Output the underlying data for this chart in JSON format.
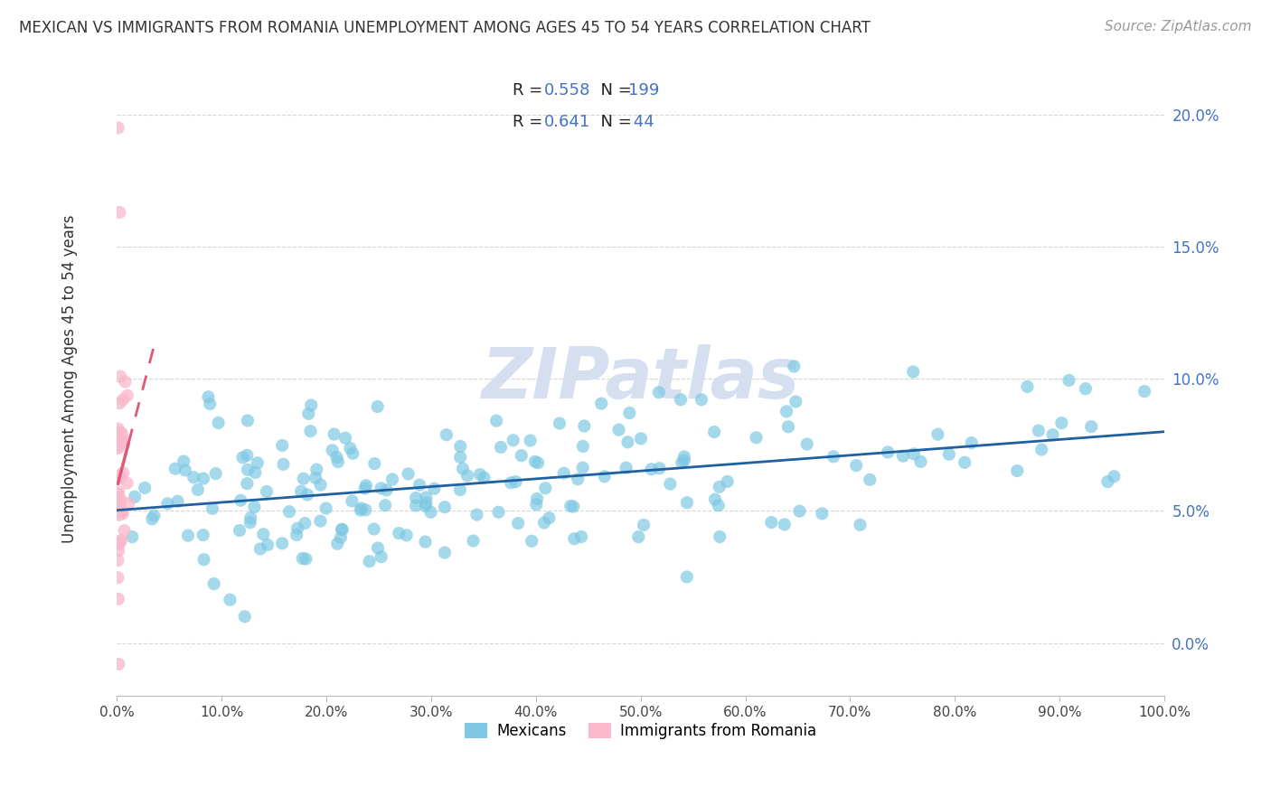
{
  "title": "MEXICAN VS IMMIGRANTS FROM ROMANIA UNEMPLOYMENT AMONG AGES 45 TO 54 YEARS CORRELATION CHART",
  "source": "Source: ZipAtlas.com",
  "ylabel": "Unemployment Among Ages 45 to 54 years",
  "blue_R": 0.558,
  "blue_N": 199,
  "pink_R": 0.641,
  "pink_N": 44,
  "blue_color": "#7ec8e3",
  "pink_color": "#f9b8cb",
  "blue_line_color": "#2060a0",
  "pink_line_color": "#e05878",
  "watermark_text": "ZIPatlas",
  "watermark_color": "#d5dff0",
  "xlim": [
    0.0,
    1.0
  ],
  "ylim": [
    -0.02,
    0.22
  ],
  "xtick_positions": [
    0.0,
    0.1,
    0.2,
    0.3,
    0.4,
    0.5,
    0.6,
    0.7,
    0.8,
    0.9,
    1.0
  ],
  "xtick_labels": [
    "0.0%",
    "10.0%",
    "20.0%",
    "30.0%",
    "40.0%",
    "50.0%",
    "60.0%",
    "70.0%",
    "80.0%",
    "90.0%",
    "100.0%"
  ],
  "ytick_positions": [
    0.0,
    0.05,
    0.1,
    0.15,
    0.2
  ],
  "ytick_labels": [
    "0.0%",
    "5.0%",
    "10.0%",
    "15.0%",
    "20.0%"
  ],
  "legend_blue_label": "Mexicans",
  "legend_pink_label": "Immigrants from Romania",
  "label_color_blue": "#4472c4",
  "text_color_dark": "#222222",
  "grid_color": "#cccccc",
  "title_color": "#333333",
  "source_color": "#999999"
}
